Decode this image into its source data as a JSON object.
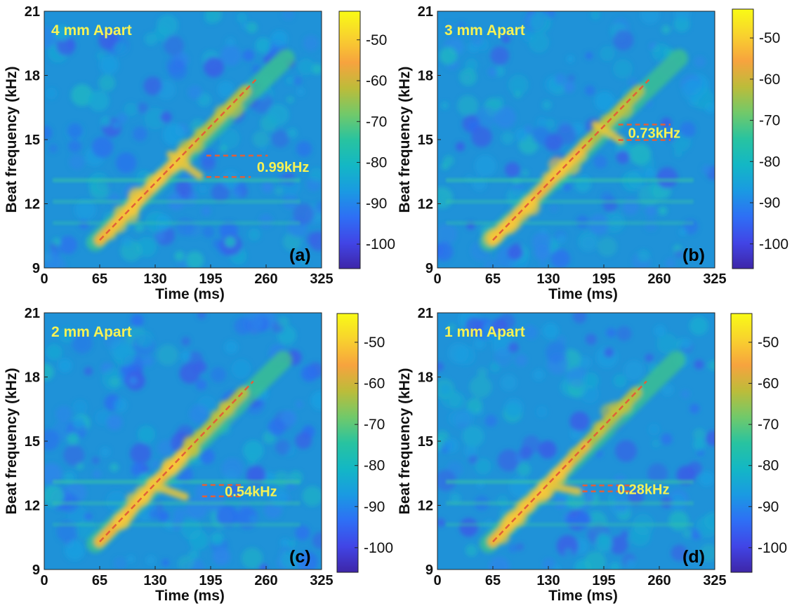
{
  "figure": {
    "panel_title_color": "#f6f255",
    "fit_line_color": "#e0603a",
    "colormap": [
      "#3e26a8",
      "#4145e6",
      "#2e6ff5",
      "#1a9ae2",
      "#13b7c5",
      "#28c3a0",
      "#71c96a",
      "#bcbc3a",
      "#f7a33e",
      "#f8d22e",
      "#f9fb15"
    ]
  },
  "chart_data": [
    {
      "type": "heatmap",
      "title": "4 mm Apart",
      "panel_label": "(a)",
      "xlabel": "Time (ms)",
      "ylabel": "Beat frequency (kHz)",
      "xlim": [
        0,
        325
      ],
      "ylim": [
        9,
        21
      ],
      "xticks": [
        "0",
        "65",
        "130",
        "195",
        "260",
        "325"
      ],
      "yticks": [
        "9",
        "12",
        "15",
        "18",
        "21"
      ],
      "colorbar": {
        "ticks": [
          "-50",
          "-60",
          "-70",
          "-80",
          "-90",
          "-100"
        ],
        "range": [
          -106,
          -43
        ]
      },
      "sweep_line": {
        "x": [
          65,
          248
        ],
        "y": [
          10.3,
          17.8
        ]
      },
      "split_lines": [
        {
          "y": 14.25,
          "x": [
            190,
            262
          ]
        },
        {
          "y": 13.25,
          "x": [
            190,
            242
          ]
        }
      ],
      "annotation": "0.99kHz",
      "annotation_value_khz": 0.99,
      "echo_trace": {
        "x": [
          148,
          182
        ],
        "y": [
          14.3,
          13.3
        ]
      }
    },
    {
      "type": "heatmap",
      "title": "3 mm Apart",
      "panel_label": "(b)",
      "xlabel": "Time (ms)",
      "ylabel": "Beat frequency (kHz)",
      "xlim": [
        0,
        325
      ],
      "ylim": [
        9,
        21
      ],
      "xticks": [
        "0",
        "65",
        "130",
        "195",
        "260",
        "325"
      ],
      "yticks": [
        "9",
        "12",
        "15",
        "18",
        "21"
      ],
      "colorbar": {
        "ticks": [
          "-50",
          "-60",
          "-70",
          "-80",
          "-90",
          "-100"
        ],
        "range": [
          -106,
          -43
        ]
      },
      "sweep_line": {
        "x": [
          65,
          248
        ],
        "y": [
          10.3,
          17.8
        ]
      },
      "split_lines": [
        {
          "y": 15.7,
          "x": [
            212,
            273
          ]
        },
        {
          "y": 14.98,
          "x": [
            212,
            273
          ]
        }
      ],
      "annotation": "0.73kHz",
      "annotation_value_khz": 0.73,
      "echo_trace": {
        "x": [
          185,
          215
        ],
        "y": [
          15.7,
          14.95
        ]
      }
    },
    {
      "type": "heatmap",
      "title": "2 mm Apart",
      "panel_label": "(c)",
      "xlabel": "Time (ms)",
      "ylabel": "Beat frequency (kHz)",
      "xlim": [
        0,
        325
      ],
      "ylim": [
        9,
        21
      ],
      "xticks": [
        "0",
        "65",
        "130",
        "195",
        "260",
        "325"
      ],
      "yticks": [
        "9",
        "12",
        "15",
        "18",
        "21"
      ],
      "colorbar": {
        "ticks": [
          "-50",
          "-60",
          "-70",
          "-80",
          "-90",
          "-100"
        ],
        "range": [
          -106,
          -43
        ]
      },
      "sweep_line": {
        "x": [
          65,
          245
        ],
        "y": [
          10.3,
          17.8
        ]
      },
      "split_lines": [
        {
          "y": 12.95,
          "x": [
            185,
            233
          ]
        },
        {
          "y": 12.42,
          "x": [
            185,
            233
          ]
        }
      ],
      "annotation": "0.54kHz",
      "annotation_value_khz": 0.54,
      "echo_trace": {
        "x": [
          130,
          165
        ],
        "y": [
          12.9,
          12.4
        ]
      }
    },
    {
      "type": "heatmap",
      "title": "1 mm Apart",
      "panel_label": "(d)",
      "xlabel": "Time (ms)",
      "ylabel": "Beat frequency (kHz)",
      "xlim": [
        0,
        325
      ],
      "ylim": [
        9,
        21
      ],
      "xticks": [
        "0",
        "65",
        "130",
        "195",
        "260",
        "325"
      ],
      "yticks": [
        "9",
        "12",
        "15",
        "18",
        "21"
      ],
      "colorbar": {
        "ticks": [
          "-50",
          "-60",
          "-70",
          "-80",
          "-90",
          "-100"
        ],
        "range": [
          -106,
          -43
        ]
      },
      "sweep_line": {
        "x": [
          65,
          245
        ],
        "y": [
          10.3,
          17.8
        ]
      },
      "split_lines": [
        {
          "y": 12.93,
          "x": [
            170,
            232
          ]
        },
        {
          "y": 12.65,
          "x": [
            170,
            225
          ]
        }
      ],
      "annotation": "0.28kHz",
      "annotation_value_khz": 0.28,
      "echo_trace": {
        "x": [
          128,
          165
        ],
        "y": [
          12.95,
          12.65
        ]
      }
    }
  ]
}
